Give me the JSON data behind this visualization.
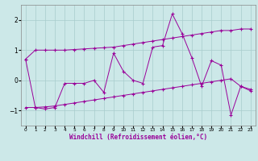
{
  "x": [
    0,
    1,
    2,
    3,
    4,
    5,
    6,
    7,
    8,
    9,
    10,
    11,
    12,
    13,
    14,
    15,
    16,
    17,
    18,
    19,
    20,
    21,
    22,
    23
  ],
  "line_main": [
    0.7,
    -0.9,
    -0.95,
    -0.9,
    -0.1,
    -0.1,
    -0.1,
    0.0,
    -0.4,
    0.9,
    0.3,
    0.0,
    -0.1,
    1.1,
    1.15,
    2.2,
    1.55,
    0.75,
    -0.2,
    0.65,
    0.5,
    -1.15,
    -0.2,
    -0.3
  ],
  "line_upper": [
    0.7,
    1.0,
    1.0,
    1.0,
    1.0,
    1.02,
    1.04,
    1.06,
    1.08,
    1.1,
    1.15,
    1.2,
    1.25,
    1.3,
    1.35,
    1.4,
    1.45,
    1.5,
    1.55,
    1.6,
    1.65,
    1.65,
    1.7,
    1.7
  ],
  "line_lower": [
    -0.9,
    -0.9,
    -0.88,
    -0.85,
    -0.8,
    -0.75,
    -0.7,
    -0.65,
    -0.6,
    -0.55,
    -0.5,
    -0.45,
    -0.4,
    -0.35,
    -0.3,
    -0.25,
    -0.2,
    -0.15,
    -0.1,
    -0.05,
    0.0,
    0.05,
    -0.2,
    -0.35
  ],
  "color": "#990099",
  "bg_color": "#cce8e8",
  "grid_color": "#a8cccc",
  "xlabel": "Windchill (Refroidissement éolien,°C)",
  "yticks": [
    -1,
    0,
    1,
    2
  ],
  "xtick_labels": [
    "0",
    "1",
    "2",
    "3",
    "4",
    "5",
    "6",
    "7",
    "8",
    "9",
    "10",
    "11",
    "12",
    "13",
    "14",
    "15",
    "16",
    "17",
    "18",
    "19",
    "20",
    "21",
    "22",
    "23"
  ],
  "ylim": [
    -1.5,
    2.5
  ],
  "xlim": [
    -0.5,
    23.5
  ]
}
